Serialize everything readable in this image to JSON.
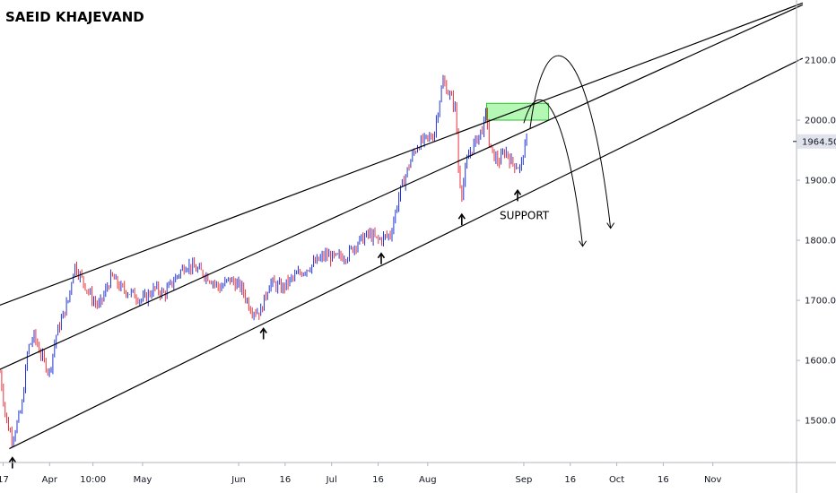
{
  "chart_data": {
    "type": "candlestick",
    "title": "SAEID KHAJEVAND",
    "y_axis": {
      "ticks": [
        1500,
        1600,
        1700,
        1800,
        1900,
        2000,
        2100
      ],
      "tick_labels": [
        "1500.00",
        "1600.00",
        "1700.00",
        "1800.00",
        "1900.00",
        "2000.00",
        "2100.00"
      ],
      "range": [
        1430,
        2200
      ]
    },
    "x_axis": {
      "tick_labels": [
        "17",
        "Apr",
        "10:00",
        "May",
        "Jun",
        "16",
        "Jul",
        "16",
        "Aug",
        "Sep",
        "16",
        "Oct",
        "16",
        "Nov"
      ],
      "tick_dates": [
        "2020-03-17",
        "2020-04-01",
        "2020-04-15",
        "2020-05-01",
        "2020-06-01",
        "2020-06-16",
        "2020-07-01",
        "2020-07-16",
        "2020-08-01",
        "2020-09-01",
        "2020-09-16",
        "2020-10-01",
        "2020-10-16",
        "2020-11-01"
      ]
    },
    "last_price": 1964.5,
    "last_price_label": "1964.50",
    "price_path": [
      [
        "2020-03-16",
        1580
      ],
      [
        "2020-03-18",
        1500
      ],
      [
        "2020-03-20",
        1470
      ],
      [
        "2020-03-23",
        1520
      ],
      [
        "2020-03-25",
        1620
      ],
      [
        "2020-03-27",
        1640
      ],
      [
        "2020-03-30",
        1600
      ],
      [
        "2020-04-01",
        1580
      ],
      [
        "2020-04-03",
        1640
      ],
      [
        "2020-04-07",
        1700
      ],
      [
        "2020-04-09",
        1760
      ],
      [
        "2020-04-13",
        1720
      ],
      [
        "2020-04-15",
        1700
      ],
      [
        "2020-04-17",
        1690
      ],
      [
        "2020-04-21",
        1740
      ],
      [
        "2020-04-24",
        1720
      ],
      [
        "2020-04-28",
        1710
      ],
      [
        "2020-05-01",
        1700
      ],
      [
        "2020-05-05",
        1720
      ],
      [
        "2020-05-08",
        1710
      ],
      [
        "2020-05-12",
        1740
      ],
      [
        "2020-05-15",
        1760
      ],
      [
        "2020-05-19",
        1750
      ],
      [
        "2020-05-22",
        1740
      ],
      [
        "2020-05-26",
        1720
      ],
      [
        "2020-05-29",
        1735
      ],
      [
        "2020-06-02",
        1720
      ],
      [
        "2020-06-05",
        1685
      ],
      [
        "2020-06-08",
        1680
      ],
      [
        "2020-06-11",
        1730
      ],
      [
        "2020-06-15",
        1720
      ],
      [
        "2020-06-18",
        1735
      ],
      [
        "2020-06-22",
        1750
      ],
      [
        "2020-06-25",
        1760
      ],
      [
        "2020-06-29",
        1775
      ],
      [
        "2020-07-02",
        1770
      ],
      [
        "2020-07-06",
        1775
      ],
      [
        "2020-07-09",
        1795
      ],
      [
        "2020-07-13",
        1810
      ],
      [
        "2020-07-16",
        1800
      ],
      [
        "2020-07-20",
        1810
      ],
      [
        "2020-07-23",
        1880
      ],
      [
        "2020-07-27",
        1940
      ],
      [
        "2020-07-29",
        1960
      ],
      [
        "2020-08-03",
        1975
      ],
      [
        "2020-08-05",
        2040
      ],
      [
        "2020-08-06",
        2065
      ],
      [
        "2020-08-10",
        2020
      ],
      [
        "2020-08-11",
        1910
      ],
      [
        "2020-08-12",
        1880
      ],
      [
        "2020-08-14",
        1940
      ],
      [
        "2020-08-17",
        1970
      ],
      [
        "2020-08-19",
        1990
      ],
      [
        "2020-08-20",
        2015
      ],
      [
        "2020-08-21",
        1950
      ],
      [
        "2020-08-24",
        1930
      ],
      [
        "2020-08-26",
        1950
      ],
      [
        "2020-08-28",
        1930
      ],
      [
        "2020-08-31",
        1920
      ],
      [
        "2020-09-01",
        1950
      ],
      [
        "2020-09-02",
        1964.5
      ]
    ],
    "channel_lines": [
      {
        "name": "",
        "points": [
          [
            "2020-03-01",
            1663
          ],
          [
            "2020-11-30",
            2195
          ]
        ]
      },
      {
        "name": "",
        "points": [
          [
            "2020-03-01",
            1550
          ],
          [
            "2020-11-30",
            2192
          ]
        ]
      },
      {
        "name": "",
        "points": [
          [
            "2020-03-19",
            1453
          ],
          [
            "2020-11-30",
            2103
          ]
        ]
      }
    ],
    "support_markers": [
      "2020-03-20",
      "2020-06-09",
      "2020-07-17",
      "2020-08-12",
      "2020-08-30"
    ],
    "annotation_text": "SUPPORT",
    "resistance_zone": {
      "x_from": "2020-08-20",
      "x_to": "2020-09-09",
      "y_from": 2000,
      "y_to": 2028,
      "color": "#9cf59c"
    },
    "projection_paths": [
      [
        [
          "2020-09-03",
          1985
        ],
        [
          "2020-09-08",
          2130
        ],
        [
          "2020-09-22",
          2050
        ],
        [
          "2020-09-29",
          1820
        ]
      ],
      [
        [
          "2020-09-01",
          1995
        ],
        [
          "2020-09-06",
          2025
        ],
        [
          "2020-09-15",
          1930
        ],
        [
          "2020-09-20",
          1790
        ]
      ]
    ],
    "colors": {
      "up_candle": "#2236d6",
      "down_candle": "#e8323c",
      "lines": "#000000",
      "axis_text": "#131722",
      "zone": "#9cf59c"
    }
  }
}
